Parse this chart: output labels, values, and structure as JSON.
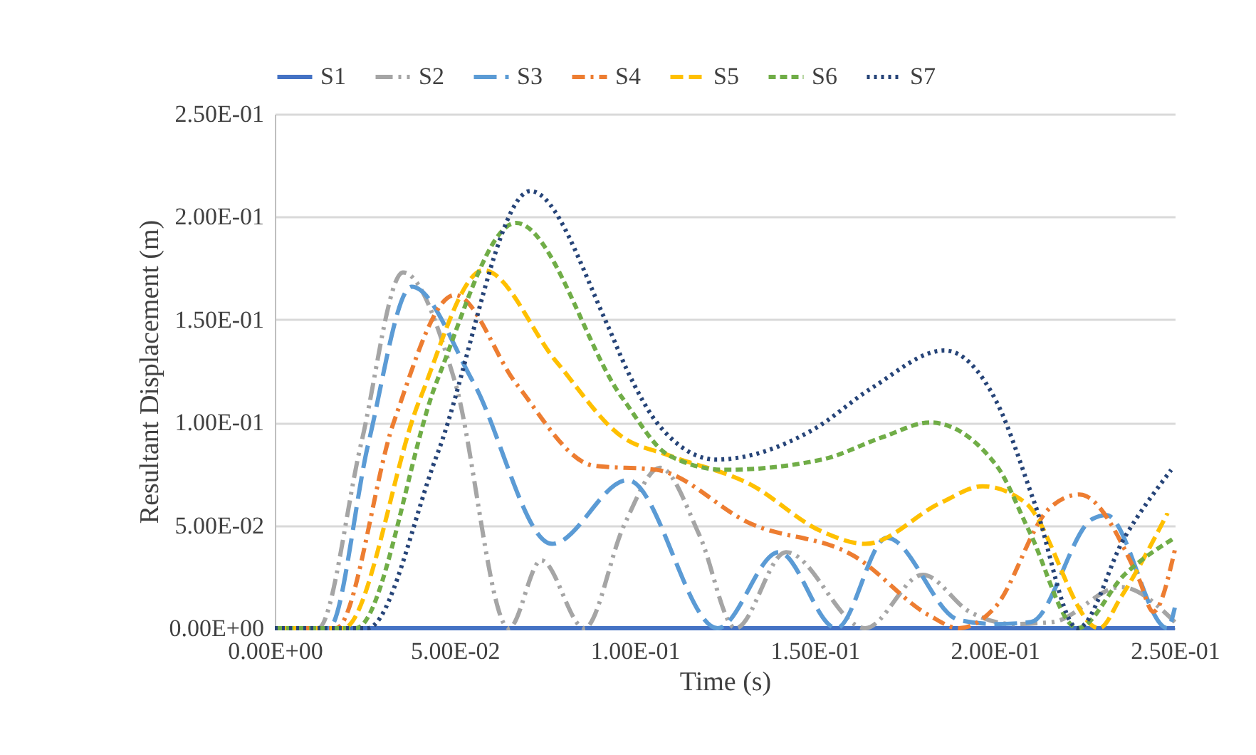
{
  "chart_data": {
    "type": "line",
    "xlabel": "Time (s)",
    "ylabel": "Resultant Displacement (m)",
    "xlim": [
      0,
      0.25
    ],
    "ylim": [
      0,
      0.25
    ],
    "xticks": [
      {
        "value": 0,
        "label": "0.00E+00"
      },
      {
        "value": 0.05,
        "label": "5.00E-02"
      },
      {
        "value": 0.1,
        "label": "1.00E-01"
      },
      {
        "value": 0.15,
        "label": "1.50E-01"
      },
      {
        "value": 0.2,
        "label": "2.00E-01"
      },
      {
        "value": 0.25,
        "label": "2.50E-01"
      }
    ],
    "yticks": [
      {
        "value": 0,
        "label": "0.00E+00"
      },
      {
        "value": 0.05,
        "label": "5.00E-02"
      },
      {
        "value": 0.1,
        "label": "1.00E-01"
      },
      {
        "value": 0.15,
        "label": "1.50E-01"
      },
      {
        "value": 0.2,
        "label": "2.00E-01"
      },
      {
        "value": 0.25,
        "label": "2.50E-01"
      }
    ],
    "grid": "y",
    "legend": "top",
    "marker": "none",
    "series": [
      {
        "name": "S1",
        "color": "#4472c4",
        "line_style": "solid",
        "x": [
          0,
          0.25
        ],
        "values": [
          0,
          0
        ]
      },
      {
        "name": "S2",
        "color": "#a5a5a5",
        "line_style": "dashed",
        "x": [
          0,
          0.012,
          0.024,
          0.0356,
          0.05,
          0.065,
          0.074,
          0.086,
          0.097,
          0.107,
          0.118,
          0.128,
          0.142,
          0.164,
          0.18,
          0.193,
          0.205,
          0.216,
          0.235,
          0.25
        ],
        "values": [
          0,
          0,
          0.09,
          0.173,
          0.12,
          0,
          0.033,
          0,
          0.05,
          0.078,
          0.045,
          0,
          0.037,
          0,
          0.026,
          0.008,
          0.002,
          0.003,
          0.02,
          0.003
        ]
      },
      {
        "name": "S3",
        "color": "#5b9bd5",
        "line_style": "dashed",
        "x": [
          0,
          0.015,
          0.026,
          0.038,
          0.055,
          0.077,
          0.098,
          0.123,
          0.14,
          0.156,
          0.17,
          0.19,
          0.2,
          0.21,
          0.227,
          0.231,
          0.248,
          0.25
        ],
        "values": [
          0,
          0,
          0.09,
          0.166,
          0.12,
          0.041,
          0.072,
          0,
          0.037,
          0,
          0.044,
          0.004,
          0.002,
          0.003,
          0.053,
          0.055,
          0,
          0.01
        ]
      },
      {
        "name": "S4",
        "color": "#ed7d31",
        "line_style": "dashed",
        "x": [
          0,
          0.017,
          0.033,
          0.05,
          0.067,
          0.0886,
          0.106,
          0.132,
          0.161,
          0.182,
          0.19,
          0.2,
          0.215,
          0.2235,
          0.24,
          0.244,
          0.25
        ],
        "values": [
          0,
          0,
          0.1,
          0.162,
          0.119,
          0.079,
          0.077,
          0.051,
          0.035,
          0.006,
          0,
          0.01,
          0.058,
          0.065,
          0.024,
          0.008,
          0.038
        ]
      },
      {
        "name": "S5",
        "color": "#ffc000",
        "line_style": "dashed",
        "x": [
          0,
          0.019,
          0.04,
          0.058,
          0.078,
          0.0965,
          0.1095,
          0.132,
          0.152,
          0.164,
          0.185,
          0.1966,
          0.2085,
          0.229,
          0.235,
          0.248
        ],
        "values": [
          0,
          0,
          0.11,
          0.174,
          0.13,
          0.093,
          0.084,
          0.07,
          0.047,
          0.041,
          0.061,
          0.069,
          0.061,
          0,
          0.015,
          0.056
        ]
      },
      {
        "name": "S6",
        "color": "#70ad47",
        "line_style": "dashed",
        "x": [
          0,
          0.0225,
          0.045,
          0.067,
          0.0965,
          0.1095,
          0.125,
          0.152,
          0.169,
          0.182,
          0.2005,
          0.2096,
          0.223,
          0.236,
          0.25
        ],
        "values": [
          0,
          0,
          0.12,
          0.197,
          0.112,
          0.084,
          0.077,
          0.082,
          0.093,
          0.1,
          0.079,
          0.047,
          0,
          0.026,
          0.044
        ]
      },
      {
        "name": "S7",
        "color": "#264478",
        "line_style": "dotted",
        "x": [
          0,
          0.0257,
          0.045,
          0.071,
          0.0925,
          0.0977,
          0.107,
          0.1226,
          0.149,
          0.166,
          0.186,
          0.2005,
          0.211,
          0.223,
          0.236,
          0.249
        ],
        "values": [
          0,
          0,
          0.084,
          0.2125,
          0.147,
          0.126,
          0.098,
          0.082,
          0.096,
          0.117,
          0.135,
          0.11,
          0.061,
          0,
          0.044,
          0.077
        ]
      }
    ]
  }
}
